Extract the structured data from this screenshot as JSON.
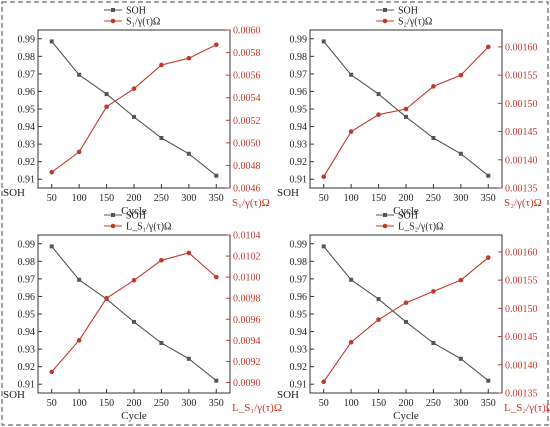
{
  "chart_data": [
    {
      "type": "line",
      "x": [
        50,
        100,
        150,
        200,
        250,
        300,
        350
      ],
      "xlabel": "Cycle",
      "xticks": [
        "50",
        "100",
        "150",
        "200",
        "250",
        "300",
        "350"
      ],
      "ylabel_left": "SOH",
      "ylim_left": [
        0.905,
        0.995
      ],
      "yticks_left": [
        "0.91",
        "0.92",
        "0.93",
        "0.94",
        "0.95",
        "0.96",
        "0.97",
        "0.98",
        "0.99"
      ],
      "ylabel_right": "S₁/γ(τ)Ω",
      "ylim_right": [
        0.0046,
        0.006
      ],
      "yticks_right": [
        "0.0046",
        "0.0048",
        "0.0050",
        "0.0052",
        "0.0054",
        "0.0056",
        "0.0058",
        "0.0060"
      ],
      "legend_position": "top-center",
      "series": [
        {
          "name": "SOH",
          "axis": "left",
          "color": "#555555",
          "values": [
            0.9885,
            0.9695,
            0.9585,
            0.9455,
            0.9335,
            0.9245,
            0.912
          ]
        },
        {
          "name": "S₁/γ(τ)Ω",
          "axis": "right",
          "color": "#c0392b",
          "values": [
            0.00474,
            0.00492,
            0.00532,
            0.00548,
            0.00569,
            0.00575,
            0.00587
          ]
        }
      ]
    },
    {
      "type": "line",
      "x": [
        50,
        100,
        150,
        200,
        250,
        300,
        350
      ],
      "xlabel": "Cycle",
      "xticks": [
        "50",
        "100",
        "150",
        "200",
        "250",
        "300",
        "350"
      ],
      "ylabel_left": "SOH",
      "ylim_left": [
        0.905,
        0.995
      ],
      "yticks_left": [
        "0.91",
        "0.92",
        "0.93",
        "0.94",
        "0.95",
        "0.96",
        "0.97",
        "0.98",
        "0.99"
      ],
      "ylabel_right": "S₂/γ(τ)Ω",
      "ylim_right": [
        0.00135,
        0.00163
      ],
      "yticks_right": [
        "0.00135",
        "0.00140",
        "0.00145",
        "0.00150",
        "0.00155",
        "0.00160"
      ],
      "legend_position": "top-center",
      "series": [
        {
          "name": "SOH",
          "axis": "left",
          "color": "#555555",
          "values": [
            0.9885,
            0.9695,
            0.9585,
            0.9455,
            0.9335,
            0.9245,
            0.912
          ]
        },
        {
          "name": "S₂/γ(τ)Ω",
          "axis": "right",
          "color": "#c0392b",
          "values": [
            0.00137,
            0.00145,
            0.00148,
            0.00149,
            0.00153,
            0.00155,
            0.0016
          ]
        }
      ]
    },
    {
      "type": "line",
      "x": [
        50,
        100,
        150,
        200,
        250,
        300,
        350
      ],
      "xlabel": "Cycle",
      "xticks": [
        "50",
        "100",
        "150",
        "200",
        "250",
        "300",
        "350"
      ],
      "ylabel_left": "SOH",
      "ylim_left": [
        0.905,
        0.995
      ],
      "yticks_left": [
        "0.91",
        "0.92",
        "0.93",
        "0.94",
        "0.95",
        "0.96",
        "0.97",
        "0.98",
        "0.99"
      ],
      "ylabel_right": "L_S₁/γ(τ)Ω",
      "ylim_right": [
        0.0089,
        0.0104
      ],
      "yticks_right": [
        "0.0090",
        "0.0092",
        "0.0094",
        "0.0096",
        "0.0098",
        "0.0100",
        "0.0102",
        "0.0104"
      ],
      "legend_position": "top-center",
      "series": [
        {
          "name": "SOH",
          "axis": "left",
          "color": "#555555",
          "values": [
            0.9885,
            0.9695,
            0.9585,
            0.9455,
            0.9335,
            0.9245,
            0.912
          ]
        },
        {
          "name": "L_S₁/γ(τ)Ω",
          "axis": "right",
          "color": "#c0392b",
          "values": [
            0.0091,
            0.0094,
            0.0098,
            0.00997,
            0.01016,
            0.01023,
            0.01
          ]
        }
      ]
    },
    {
      "type": "line",
      "x": [
        50,
        100,
        150,
        200,
        250,
        300,
        350
      ],
      "xlabel": "Cycle",
      "xticks": [
        "50",
        "100",
        "150",
        "200",
        "250",
        "300",
        "350"
      ],
      "ylabel_left": "SOH",
      "ylim_left": [
        0.905,
        0.995
      ],
      "yticks_left": [
        "0.91",
        "0.92",
        "0.93",
        "0.94",
        "0.95",
        "0.96",
        "0.97",
        "0.98",
        "0.99"
      ],
      "ylabel_right": "L_S₂/γ(τ)Ω",
      "ylim_right": [
        0.00135,
        0.00163
      ],
      "yticks_right": [
        "0.00135",
        "0.00140",
        "0.00145",
        "0.00150",
        "0.00155",
        "0.00160"
      ],
      "legend_position": "top-center",
      "series": [
        {
          "name": "SOH",
          "axis": "left",
          "color": "#555555",
          "values": [
            0.9885,
            0.9695,
            0.9585,
            0.9455,
            0.9335,
            0.9245,
            0.912
          ]
        },
        {
          "name": "L_S₂/γ(τ)Ω",
          "axis": "right",
          "color": "#c0392b",
          "values": [
            0.00137,
            0.00144,
            0.00148,
            0.00151,
            0.00153,
            0.00155,
            0.00159
          ]
        }
      ]
    }
  ]
}
